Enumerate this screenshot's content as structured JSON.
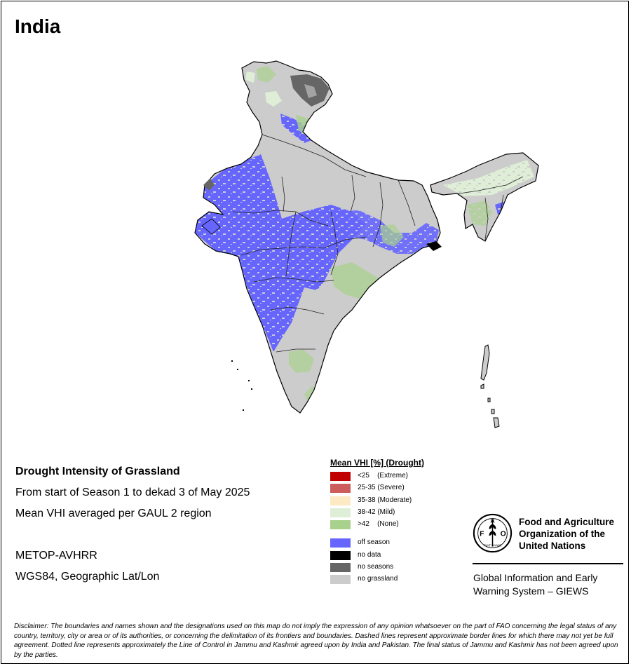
{
  "map": {
    "title": "India",
    "colors": {
      "extreme": "#c00000",
      "severe": "#cd5c5c",
      "moderate": "#fde9c4",
      "mild": "#dfeed6",
      "none": "#a9d18e",
      "off_season": "#6666ff",
      "no_data": "#000000",
      "no_seasons": "#666666",
      "no_grassland": "#cccccc"
    }
  },
  "info": {
    "heading": "Drought Intensity of Grassland",
    "period": "From start of Season 1 to dekad 3 of May 2025",
    "method": "Mean VHI averaged per GAUL 2 region",
    "sensor": "METOP-AVHRR",
    "projection": "WGS84, Geographic Lat/Lon"
  },
  "legend": {
    "title": "Mean VHI [%] (Drought)",
    "items": [
      {
        "key": "extreme",
        "label": "<25    (Extreme)",
        "color": "#c00000"
      },
      {
        "key": "severe",
        "label": "25-35 (Severe)",
        "color": "#cd5c5c"
      },
      {
        "key": "moderate",
        "label": "35-38 (Moderate)",
        "color": "#fde9c4"
      },
      {
        "key": "mild",
        "label": "38-42 (Mild)",
        "color": "#dfeed6"
      },
      {
        "key": "none",
        "label": ">42    (None)",
        "color": "#a9d18e"
      }
    ],
    "other": [
      {
        "key": "off_season",
        "label": "off season",
        "color": "#6666ff"
      },
      {
        "key": "no_data",
        "label": "no data",
        "color": "#000000"
      },
      {
        "key": "no_seasons",
        "label": "no seasons",
        "color": "#666666"
      },
      {
        "key": "no_grassland",
        "label": "no grassland",
        "color": "#cccccc"
      }
    ]
  },
  "fao": {
    "emblem_letters": "FAO",
    "motto": "FIAT PANIS",
    "name_line1": "Food and Agriculture",
    "name_line2": "Organization of the",
    "name_line3": "United Nations",
    "giews_line1": "Global Information and Early",
    "giews_line2": "Warning System – GIEWS"
  },
  "disclaimer": "Disclaimer: The boundaries and names shown and the designations used on this map do not imply the expression of any opinion whatsoever on the part of FAO concerning the legal status of any country, territory, city or area or of its authorities, or concerning the delimitation of its frontiers and boundaries. Dashed lines represent approximate border lines for which there may not yet be full agreement. Dotted line represents approximately the Line of Control in Jammu and Kashmir agreed upon by India and Pakistan. The final status of Jammu and Kashmir has not been agreed upon by the parties."
}
